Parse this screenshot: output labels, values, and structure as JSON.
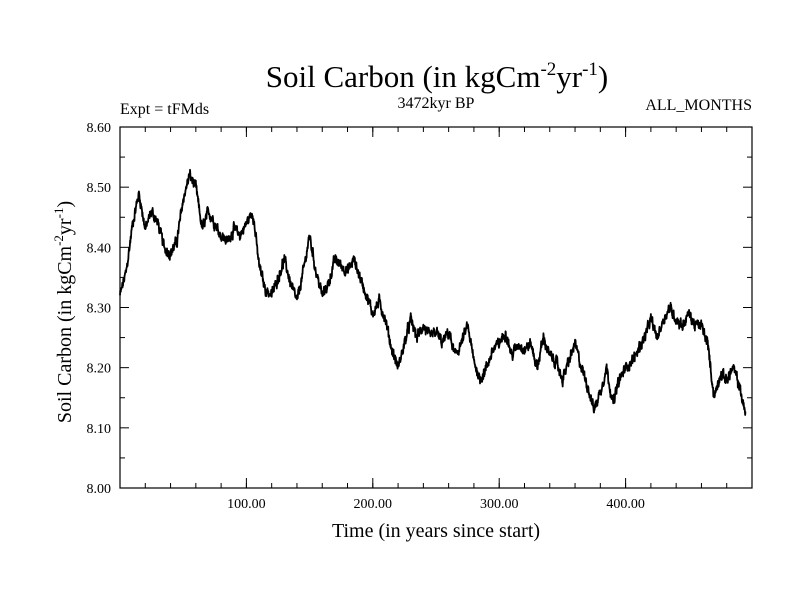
{
  "chart_data": {
    "type": "line",
    "title": {
      "main": "Soil Carbon (in kgCm",
      "exp1": "-2",
      "mid": "yr",
      "exp2": "-1",
      "close": ")"
    },
    "subtitle_left": "Expt = tFMds",
    "subtitle_center": "3472kyr BP",
    "subtitle_right": "ALL_MONTHS",
    "xlabel": "Time (in years since start)",
    "ylabel": {
      "main": "Soil Carbon (in kgCm",
      "exp1": "-2",
      "mid": "yr",
      "exp2": "-1",
      "close": ")"
    },
    "xlim": [
      0,
      500
    ],
    "ylim": [
      8.0,
      8.6
    ],
    "x_ticks": [
      100,
      200,
      300,
      400
    ],
    "x_tick_labels": [
      "100.00",
      "200.00",
      "300.00",
      "400.00"
    ],
    "y_ticks": [
      8.0,
      8.1,
      8.2,
      8.3,
      8.4,
      8.5,
      8.6
    ],
    "y_tick_labels": [
      "8.00",
      "8.10",
      "8.20",
      "8.30",
      "8.40",
      "8.50",
      "8.60"
    ],
    "series": [
      {
        "name": "Soil Carbon",
        "color": "#000000",
        "x_start": 0,
        "x_step": 5,
        "values": [
          8.32,
          8.36,
          8.44,
          8.49,
          8.43,
          8.46,
          8.44,
          8.4,
          8.39,
          8.41,
          8.48,
          8.52,
          8.5,
          8.43,
          8.46,
          8.44,
          8.42,
          8.41,
          8.43,
          8.42,
          8.44,
          8.46,
          8.37,
          8.33,
          8.32,
          8.35,
          8.38,
          8.34,
          8.31,
          8.36,
          8.42,
          8.36,
          8.32,
          8.34,
          8.38,
          8.37,
          8.36,
          8.38,
          8.35,
          8.32,
          8.29,
          8.31,
          8.28,
          8.23,
          8.2,
          8.24,
          8.28,
          8.25,
          8.27,
          8.25,
          8.26,
          8.24,
          8.26,
          8.22,
          8.24,
          8.27,
          8.21,
          8.18,
          8.2,
          8.23,
          8.24,
          8.26,
          8.22,
          8.24,
          8.23,
          8.24,
          8.2,
          8.25,
          8.22,
          8.21,
          8.18,
          8.21,
          8.24,
          8.2,
          8.17,
          8.13,
          8.16,
          8.2,
          8.14,
          8.18,
          8.2,
          8.21,
          8.23,
          8.25,
          8.28,
          8.25,
          8.28,
          8.3,
          8.28,
          8.27,
          8.29,
          8.27,
          8.27,
          8.24,
          8.15,
          8.19,
          8.18,
          8.2,
          8.17,
          8.12
        ]
      }
    ]
  }
}
